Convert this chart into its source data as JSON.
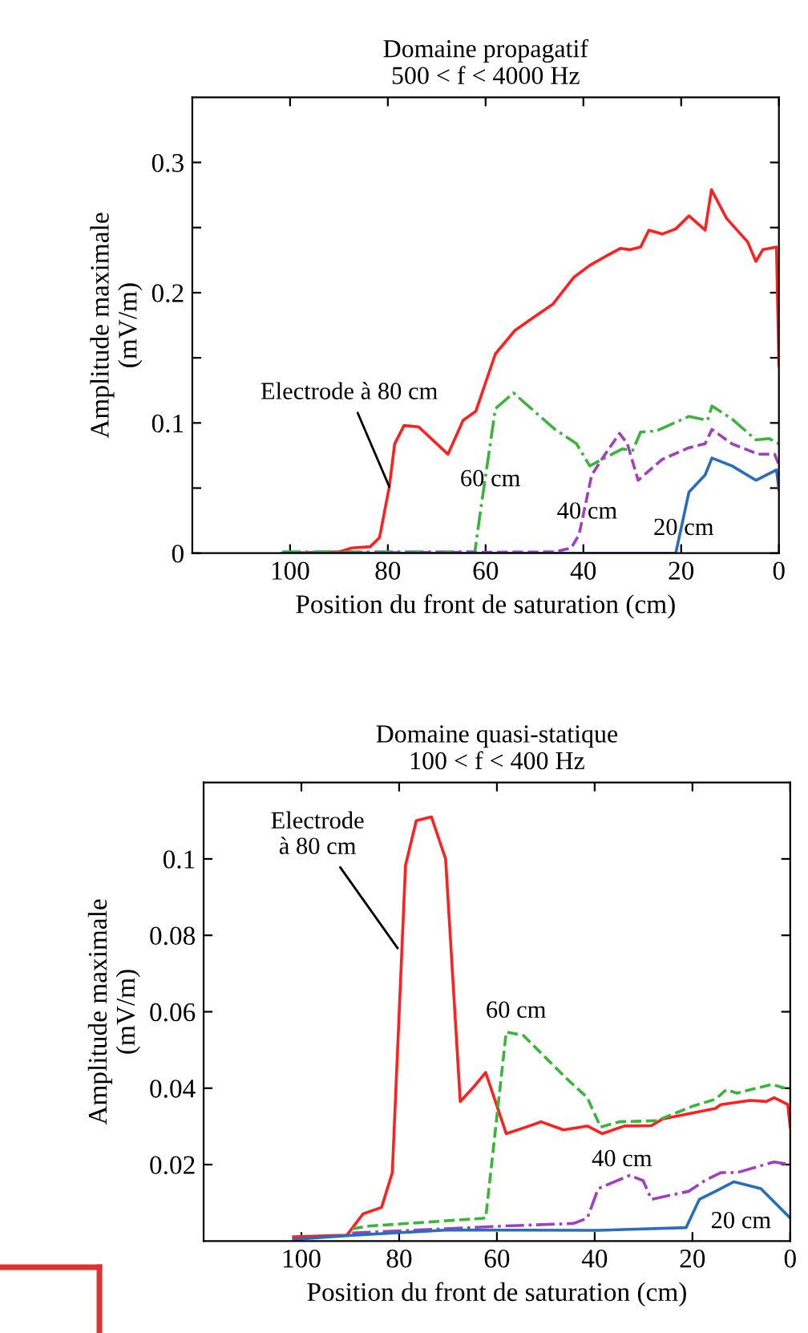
{
  "chart_data": [
    {
      "type": "line",
      "title": "Domaine propagatif",
      "subtitle": "500 < f < 4000 Hz",
      "xlabel": "Position du front de saturation (cm)",
      "ylabel": "Amplitude maximale\n(mV/m)",
      "xlim": [
        120,
        0
      ],
      "xticks": [
        100,
        80,
        60,
        40,
        20,
        0
      ],
      "ylim": [
        0,
        0.35
      ],
      "yticks": [
        0,
        {
          "value": 0.05,
          "label": null
        },
        0.1,
        {
          "value": 0.15,
          "label": null
        },
        0.2,
        {
          "value": 0.25,
          "label": null
        },
        0.3
      ],
      "grid": false,
      "legend": false,
      "series": [
        {
          "color": "#ff2020",
          "line_style": "solid",
          "x": [
            101.6,
            90,
            87.4,
            83.6,
            81.7,
            79.7,
            78.6,
            76.7,
            73.7,
            67.7,
            64.6,
            62,
            58,
            54,
            50.2,
            46.3,
            41.9,
            38.7,
            35.4,
            32.4,
            30.4,
            28.3,
            26.6,
            23.9,
            21.1,
            18.4,
            15.1,
            13.8,
            10.7,
            6.4,
            4.7,
            3.3,
            0.5,
            0
          ],
          "values": [
            0,
            0.001,
            0.004,
            0.005,
            0.012,
            0.051,
            0.084,
            0.098,
            0.097,
            0.076,
            0.102,
            0.109,
            0.153,
            0.171,
            0.181,
            0.191,
            0.212,
            0.221,
            0.228,
            0.234,
            0.233,
            0.235,
            0.248,
            0.245,
            0.249,
            0.259,
            0.248,
            0.279,
            0.257,
            0.239,
            0.224,
            0.233,
            0.235,
            0.144
          ]
        },
        {
          "color": "#3cb43c",
          "line_style": "dashdot",
          "x": [
            101.6,
            62.2,
            61.1,
            58,
            54.3,
            45.8,
            41.4,
            38.7,
            32.1,
            29.9,
            28.3,
            25,
            18.4,
            14.6,
            13.7,
            9.6,
            4.7,
            2,
            0
          ],
          "values": [
            0.001,
            0.001,
            0.031,
            0.111,
            0.123,
            0.095,
            0.084,
            0.067,
            0.08,
            0.079,
            0.093,
            0.094,
            0.105,
            0.102,
            0.113,
            0.103,
            0.087,
            0.088,
            0.084
          ]
        },
        {
          "color": "#a040c0",
          "line_style": "dashed",
          "x": [
            101.6,
            45.8,
            42.5,
            40.9,
            38.3,
            35.9,
            32.6,
            31,
            28.8,
            23.9,
            18.4,
            15.1,
            13.7,
            9.6,
            4.2,
            0.9,
            0
          ],
          "values": [
            0,
            0.001,
            0.004,
            0.014,
            0.06,
            0.074,
            0.092,
            0.084,
            0.056,
            0.072,
            0.081,
            0.084,
            0.095,
            0.084,
            0.076,
            0.076,
            0.068
          ]
        },
        {
          "color": "#2a6ebb",
          "line_style": "solid",
          "x": [
            101.6,
            21.1,
            18.4,
            15.1,
            13.7,
            9.6,
            4.7,
            0.5,
            0
          ],
          "values": [
            0,
            0,
            0.047,
            0.06,
            0.073,
            0.067,
            0.056,
            0.064,
            0.049
          ]
        }
      ],
      "annotations": [
        {
          "text": "Electrode à 80 cm",
          "x": 79.7,
          "y": 0.051
        },
        "60 cm",
        "40 cm",
        "20 cm"
      ]
    },
    {
      "type": "line",
      "title": "Domaine quasi-statique",
      "subtitle": "100 < f < 400 Hz",
      "xlabel": "Position du front de saturation (cm)",
      "ylabel": "Amplitude maximale\n(mV/m)",
      "xlim": [
        120,
        0
      ],
      "xticks": [
        100,
        80,
        60,
        40,
        20,
        0
      ],
      "ylim": [
        0,
        0.12
      ],
      "yticks": [
        0.02,
        0.04,
        0.06,
        0.08,
        0.1
      ],
      "grid": false,
      "legend": false,
      "series": [
        {
          "color": "#ff2020",
          "line_style": "solid",
          "x": [
            101.6,
            90.7,
            87.4,
            83.6,
            81.4,
            78.7,
            76.5,
            73.4,
            70.5,
            67.5,
            64.5,
            62.3,
            58.1,
            54.1,
            51,
            46.4,
            41.5,
            38.5,
            33.9,
            28.4,
            26.2,
            15.3,
            14.2,
            8.2,
            4.9,
            3.3,
            0.5,
            0
          ],
          "values": [
            0.0011,
            0.0015,
            0.0071,
            0.0088,
            0.0179,
            0.0983,
            0.11,
            0.111,
            0.1,
            0.0365,
            0.0407,
            0.0441,
            0.0281,
            0.0298,
            0.0312,
            0.0291,
            0.0301,
            0.0281,
            0.0301,
            0.0302,
            0.0319,
            0.0347,
            0.0357,
            0.0368,
            0.0365,
            0.0375,
            0.0357,
            0.0298
          ]
        },
        {
          "color": "#3cb43c",
          "line_style": "dashed",
          "x": [
            89.6,
            86.3,
            62.3,
            58.1,
            54.6,
            45.9,
            41.5,
            38.8,
            35,
            27.3,
            19.7,
            15.3,
            13.1,
            10.9,
            3.8,
            0
          ],
          "values": [
            0.0032,
            0.0039,
            0.006,
            0.0547,
            0.0538,
            0.0427,
            0.0375,
            0.0298,
            0.0312,
            0.0315,
            0.0354,
            0.0371,
            0.0396,
            0.0387,
            0.041,
            0.0396
          ]
        },
        {
          "color": "#a040c0",
          "line_style": "dashdot",
          "x": [
            89.6,
            59,
            44.3,
            41.5,
            39.3,
            32.8,
            30.1,
            28.4,
            20.8,
            17.5,
            14.2,
            10.9,
            3.3,
            0
          ],
          "values": [
            0.0021,
            0.0039,
            0.0046,
            0.006,
            0.0137,
            0.0172,
            0.0158,
            0.0109,
            0.013,
            0.0158,
            0.0179,
            0.0179,
            0.0207,
            0.02
          ]
        },
        {
          "color": "#2a6ebb",
          "line_style": "solid",
          "x": [
            101.6,
            89.6,
            69.9,
            39.3,
            21.3,
            18.6,
            15.3,
            11.5,
            6,
            0
          ],
          "values": [
            0.0004,
            0.0015,
            0.0029,
            0.0028,
            0.0035,
            0.0109,
            0.013,
            0.0155,
            0.0137,
            0.006
          ]
        }
      ],
      "annotations": [
        {
          "text": "Electrode\nà 80 cm",
          "x": 80.3,
          "y": 0.0766
        },
        "60 cm",
        "40 cm",
        "20 cm"
      ]
    }
  ]
}
